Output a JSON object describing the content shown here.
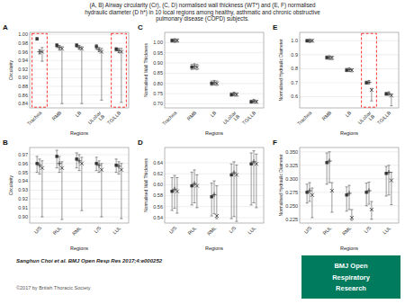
{
  "title": "(A, B) Airway circularity (Cr), (C, D) normalised wall thickness (WT*) and (E, F) normalised\nhydraulic diameter (D h*) in 10 local regions among healthy, asthmatic and chronic obstructive\npulmonary disease (COPD) subjects.",
  "annotations": [
    "Sanghun Choi et al. BMJ Open Resp Res 2017;4:e000252",
    "©2017 by British Thoracic Society",
    "BMJ Open",
    "Respiratory",
    "Research"
  ],
  "chart_data": [
    {
      "type": "errorbar",
      "title": "A",
      "xlabel": "Regions",
      "ylabel": "Circularity",
      "categories": [
        "Trachea",
        "RMB",
        "LB",
        "ULobar\nLB",
        "TG/LLB"
      ],
      "series": [
        {
          "marker": "square",
          "color": "#333333",
          "values": [
            0.99,
            0.975,
            0.975,
            0.972,
            0.966
          ],
          "lower": [
            0.987,
            0.97,
            0.971,
            0.966,
            0.962
          ],
          "upper": [
            0.993,
            0.979,
            0.979,
            0.977,
            0.97
          ]
        },
        {
          "marker": "plus",
          "color": "#333333",
          "values": [
            0.96,
            0.97,
            0.97,
            0.965,
            0.963
          ],
          "lower": [
            0.955,
            0.964,
            0.966,
            0.96,
            0.958
          ],
          "upper": [
            0.965,
            0.975,
            0.975,
            0.97,
            0.968
          ]
        },
        {
          "marker": "x",
          "color": "#333333",
          "values": [
            0.96,
            0.967,
            0.967,
            0.96,
            0.96
          ],
          "lower": [
            0.938,
            0.84,
            0.84,
            0.848,
            0.843
          ],
          "upper": [
            0.97,
            0.972,
            0.972,
            0.968,
            0.968
          ]
        }
      ],
      "ylim": [
        0.83,
        1.005
      ],
      "yticks": [
        0.84,
        0.86,
        0.88,
        {
          "value": 0.9,
          "label": "0.90"
        },
        0.92,
        0.94,
        0.96,
        0.98,
        {
          "value": 1.0,
          "label": "1.00"
        }
      ],
      "grid": true,
      "highlight": [
        "Trachea",
        "TG/LLB"
      ]
    },
    {
      "type": "errorbar",
      "title": "B",
      "xlabel": "Regions",
      "ylabel": "Circularity",
      "categories": [
        "U/S",
        "RUL",
        "RML",
        "L/S",
        "LUL"
      ],
      "series": [
        {
          "marker": "square",
          "color": "#333333",
          "values": [
            0.96,
            0.968,
            0.965,
            0.96,
            0.958
          ],
          "lower": [
            0.95,
            0.955,
            0.955,
            0.952,
            0.95
          ],
          "upper": [
            0.968,
            0.975,
            0.972,
            0.967,
            0.965
          ]
        },
        {
          "marker": "plus",
          "color": "#333333",
          "values": [
            0.958,
            0.96,
            0.963,
            0.958,
            0.957
          ],
          "lower": [
            0.948,
            0.95,
            0.952,
            0.95,
            0.948
          ],
          "upper": [
            0.965,
            0.968,
            0.97,
            0.963,
            0.962
          ]
        },
        {
          "marker": "x",
          "color": "#333333",
          "values": [
            0.955,
            0.955,
            0.96,
            0.953,
            0.953
          ],
          "lower": [
            0.9,
            0.897,
            0.907,
            0.9,
            0.898
          ],
          "upper": [
            0.963,
            0.962,
            0.967,
            0.96,
            0.96
          ]
        }
      ],
      "ylim": [
        0.893,
        0.978
      ],
      "yticks": [
        {
          "value": 0.9,
          "label": "0.90"
        },
        0.91,
        0.92,
        0.93,
        0.94,
        0.95,
        0.96,
        0.97
      ],
      "grid": true
    },
    {
      "type": "errorbar",
      "title": "C",
      "xlabel": "Regions",
      "ylabel": "Normalised Wall Thickness",
      "categories": [
        "Trachea",
        "RMB",
        "LB",
        "ULobar\nLB",
        "TG/LLB"
      ],
      "series": [
        {
          "marker": "square",
          "color": "#333333",
          "values": [
            1.01,
            0.88,
            0.8,
            0.745,
            0.71
          ],
          "lower": [
            1.002,
            0.868,
            0.79,
            0.737,
            0.703
          ],
          "upper": [
            1.018,
            0.893,
            0.812,
            0.754,
            0.718
          ]
        },
        {
          "marker": "plus",
          "color": "#333333",
          "values": [
            1.01,
            0.883,
            0.803,
            0.748,
            0.713
          ],
          "lower": [
            1.002,
            0.87,
            0.793,
            0.74,
            0.706
          ],
          "upper": [
            1.018,
            0.896,
            0.815,
            0.757,
            0.721
          ]
        },
        {
          "marker": "x",
          "color": "#333333",
          "values": [
            1.01,
            0.88,
            0.8,
            0.745,
            0.71
          ],
          "lower": [
            1.002,
            0.868,
            0.79,
            0.737,
            0.703
          ],
          "upper": [
            1.018,
            0.893,
            0.812,
            0.754,
            0.718
          ]
        }
      ],
      "ylim": [
        0.68,
        1.05
      ],
      "yticks": [
        {
          "value": 0.7,
          "label": "0.70"
        },
        0.75,
        {
          "value": 0.8,
          "label": "0.80"
        },
        0.85,
        {
          "value": 0.9,
          "label": "0.90"
        },
        0.95,
        {
          "value": 1.0,
          "label": "1.00"
        }
      ],
      "grid": true
    },
    {
      "type": "errorbar",
      "title": "D",
      "xlabel": "Regions",
      "ylabel": "Normalised Wall Thickness",
      "categories": [
        "U/S",
        "RUL",
        "RML",
        "L/S",
        "LUL"
      ],
      "series": [
        {
          "marker": "square",
          "color": "#333333",
          "values": [
            0.588,
            0.598,
            0.578,
            0.618,
            0.638
          ],
          "lower": [
            0.553,
            0.563,
            0.543,
            0.538,
            0.563
          ],
          "upper": [
            0.613,
            0.623,
            0.603,
            0.638,
            0.658
          ]
        },
        {
          "marker": "plus",
          "color": "#333333",
          "values": [
            0.592,
            0.602,
            0.582,
            0.622,
            0.642
          ],
          "lower": [
            0.557,
            0.567,
            0.547,
            0.542,
            0.567
          ],
          "upper": [
            0.617,
            0.627,
            0.607,
            0.642,
            0.662
          ]
        },
        {
          "marker": "x",
          "color": "#333333",
          "values": [
            0.588,
            0.598,
            0.543,
            0.618,
            0.638
          ],
          "lower": [
            0.548,
            0.558,
            0.538,
            0.533,
            0.558
          ],
          "upper": [
            0.613,
            0.618,
            0.598,
            0.636,
            0.656
          ]
        }
      ],
      "ylim": [
        0.53,
        0.668
      ],
      "yticks": [
        0.54,
        0.56,
        0.58,
        {
          "value": 0.6,
          "label": "0.60"
        },
        0.62,
        0.64
      ],
      "grid": true
    },
    {
      "type": "errorbar",
      "title": "E",
      "xlabel": "Regions",
      "ylabel": "Normalised Hydraulic Diameter",
      "categories": [
        "Trachea",
        "RMB",
        "LB",
        "ULobar\nLB",
        "TG/LLB"
      ],
      "series": [
        {
          "marker": "square",
          "color": "#333333",
          "values": [
            1.0,
            0.88,
            0.79,
            0.7,
            0.62
          ],
          "lower": [
            0.99,
            0.868,
            0.779,
            0.69,
            0.61
          ],
          "upper": [
            1.01,
            0.892,
            0.803,
            0.712,
            0.632
          ]
        },
        {
          "marker": "plus",
          "color": "#333333",
          "values": [
            1.0,
            0.88,
            0.793,
            0.703,
            0.622
          ],
          "lower": [
            0.99,
            0.868,
            0.781,
            0.693,
            0.612
          ],
          "upper": [
            1.01,
            0.892,
            0.805,
            0.715,
            0.634
          ]
        },
        {
          "marker": "x",
          "color": "#333333",
          "values": [
            1.0,
            0.878,
            0.79,
            0.648,
            0.608
          ],
          "lower": [
            0.99,
            0.865,
            0.777,
            0.57,
            0.535
          ],
          "upper": [
            1.01,
            0.89,
            0.801,
            0.66,
            0.62
          ]
        }
      ],
      "ylim": [
        0.52,
        1.06
      ],
      "yticks": [
        0.6,
        0.7,
        0.8,
        0.9,
        {
          "value": 1.0,
          "label": "1.0"
        }
      ],
      "grid": true,
      "highlight": [
        "ULobar\nLB"
      ]
    },
    {
      "type": "errorbar",
      "title": "F",
      "xlabel": "Regions",
      "ylabel": "Normalised Hydraulic Diameter",
      "categories": [
        "U/S",
        "RUL",
        "RML",
        "L/S",
        "LUL"
      ],
      "series": [
        {
          "marker": "square",
          "color": "#333333",
          "values": [
            0.275,
            0.33,
            0.27,
            0.275,
            0.31
          ],
          "lower": [
            0.255,
            0.29,
            0.24,
            0.25,
            0.268
          ],
          "upper": [
            0.29,
            0.348,
            0.285,
            0.292,
            0.323
          ]
        },
        {
          "marker": "plus",
          "color": "#333333",
          "values": [
            0.278,
            0.333,
            0.273,
            0.278,
            0.312
          ],
          "lower": [
            0.258,
            0.293,
            0.243,
            0.253,
            0.27
          ],
          "upper": [
            0.293,
            0.35,
            0.288,
            0.294,
            0.325
          ]
        },
        {
          "marker": "x",
          "color": "#333333",
          "values": [
            0.27,
            0.278,
            0.228,
            0.243,
            0.297
          ],
          "lower": [
            0.228,
            0.238,
            0.223,
            0.225,
            0.252
          ],
          "upper": [
            0.283,
            0.293,
            0.243,
            0.258,
            0.312
          ]
        }
      ],
      "ylim": [
        0.218,
        0.358
      ],
      "yticks": [
        0.225,
        {
          "value": 0.25,
          "label": "0.250"
        },
        0.275,
        {
          "value": 0.3,
          "label": "0.300"
        },
        0.325,
        {
          "value": 0.35,
          "label": "0.350"
        }
      ],
      "grid": true
    }
  ]
}
